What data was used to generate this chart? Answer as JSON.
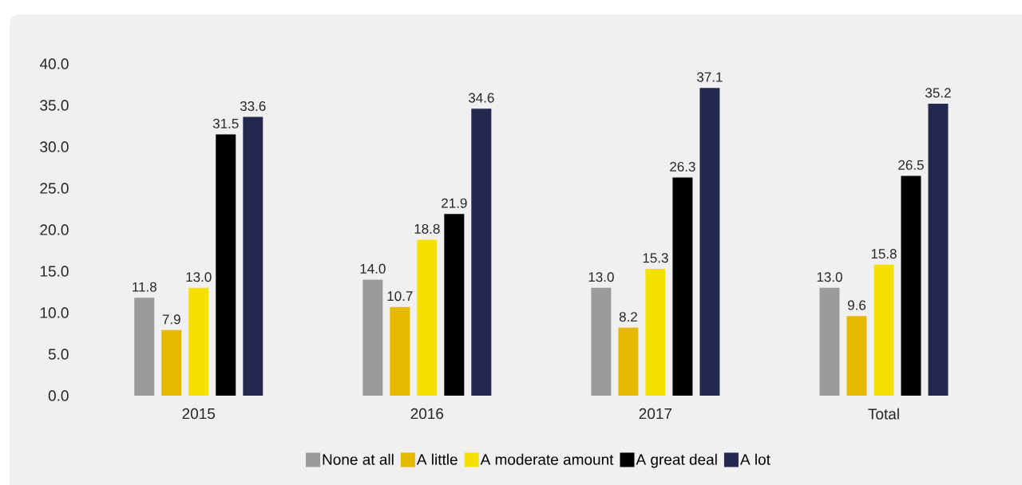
{
  "chart_data": {
    "type": "bar",
    "categories": [
      "2015",
      "2016",
      "2017",
      "Total"
    ],
    "series": [
      {
        "name": "None at all",
        "color": "#9b9b9b",
        "values": [
          11.8,
          14.0,
          13.0,
          13.0
        ],
        "value_labels": [
          "11.8",
          "14.0",
          "13.0",
          "13.0"
        ]
      },
      {
        "name": "A little",
        "color": "#e6b800",
        "values": [
          7.9,
          10.7,
          8.2,
          9.6
        ],
        "value_labels": [
          "7.9",
          "10.7",
          "8.2",
          "9.6"
        ]
      },
      {
        "name": "A moderate amount",
        "color": "#f5e100",
        "values": [
          13.0,
          18.8,
          15.3,
          15.8
        ],
        "value_labels": [
          "13.0",
          "18.8",
          "15.3",
          "15.8"
        ]
      },
      {
        "name": "A great deal",
        "color": "#000000",
        "values": [
          31.5,
          21.9,
          26.3,
          26.5
        ],
        "value_labels": [
          "31.5",
          "21.9",
          "26.3",
          "26.5"
        ]
      },
      {
        "name": "A lot",
        "color": "#23284f",
        "values": [
          33.6,
          34.6,
          37.1,
          35.2
        ],
        "value_labels": [
          "33.6",
          "34.6",
          "37.1",
          "35.2"
        ]
      }
    ],
    "ylim": [
      0,
      40
    ],
    "yticks": [
      {
        "value": 0,
        "label": "0.0"
      },
      {
        "value": 5,
        "label": "5.0"
      },
      {
        "value": 10,
        "label": "10.0"
      },
      {
        "value": 15,
        "label": "15.0"
      },
      {
        "value": 20,
        "label": "20.0"
      },
      {
        "value": 25,
        "label": "25.0"
      },
      {
        "value": 30,
        "label": "30.0"
      },
      {
        "value": 35,
        "label": "35.0"
      },
      {
        "value": 40,
        "label": "40.0"
      }
    ],
    "legend": "bottom"
  }
}
